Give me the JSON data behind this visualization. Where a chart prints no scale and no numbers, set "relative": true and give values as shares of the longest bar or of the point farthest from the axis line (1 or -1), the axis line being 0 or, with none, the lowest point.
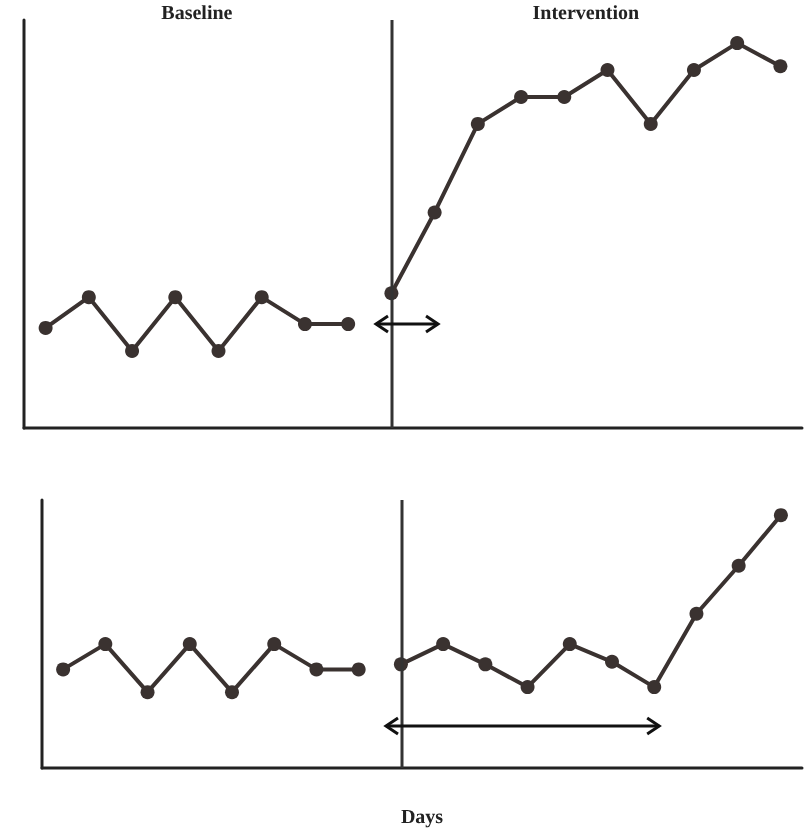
{
  "chart_data": [
    {
      "type": "line",
      "relative": true,
      "grid": false,
      "marker": "circle",
      "line_style": "solid",
      "annotations": [
        "Baseline",
        "Intervention"
      ],
      "ref_lines": [
        {
          "axis": "x",
          "color": "#333333"
        }
      ],
      "categories": [
        null,
        null,
        null,
        null,
        null,
        null,
        null,
        null,
        null,
        null,
        null,
        null,
        null,
        null,
        null,
        null,
        null,
        null
      ],
      "series": [
        {
          "color": "#3a3230",
          "values": [
            0.26,
            0.34,
            0.2,
            0.34,
            0.2,
            0.34,
            0.27,
            0.27,
            null,
            null,
            null,
            null,
            null,
            null,
            null,
            null,
            null,
            null
          ]
        },
        {
          "color": "#3a3230",
          "values": [
            null,
            null,
            null,
            null,
            null,
            null,
            null,
            null,
            0.35,
            0.56,
            0.79,
            0.86,
            0.86,
            0.93,
            0.79,
            0.93,
            1,
            0.94
          ]
        }
      ]
    },
    {
      "type": "line",
      "relative": true,
      "grid": false,
      "marker": "circle",
      "line_style": "solid",
      "xlabel": "Days",
      "ref_lines": [
        {
          "axis": "x",
          "color": "#333333"
        }
      ],
      "categories": [
        null,
        null,
        null,
        null,
        null,
        null,
        null,
        null,
        null,
        null,
        null,
        null,
        null,
        null,
        null,
        null,
        null,
        null
      ],
      "series": [
        {
          "color": "#3a3230",
          "values": [
            0.39,
            0.49,
            0.3,
            0.49,
            0.3,
            0.49,
            0.39,
            0.39,
            null,
            null,
            null,
            null,
            null,
            null,
            null,
            null,
            null,
            null
          ]
        },
        {
          "color": "#3a3230",
          "values": [
            null,
            null,
            null,
            null,
            null,
            null,
            null,
            null,
            0.41,
            0.49,
            0.41,
            0.32,
            0.49,
            0.42,
            0.32,
            0.61,
            0.8,
            1
          ]
        }
      ]
    }
  ]
}
